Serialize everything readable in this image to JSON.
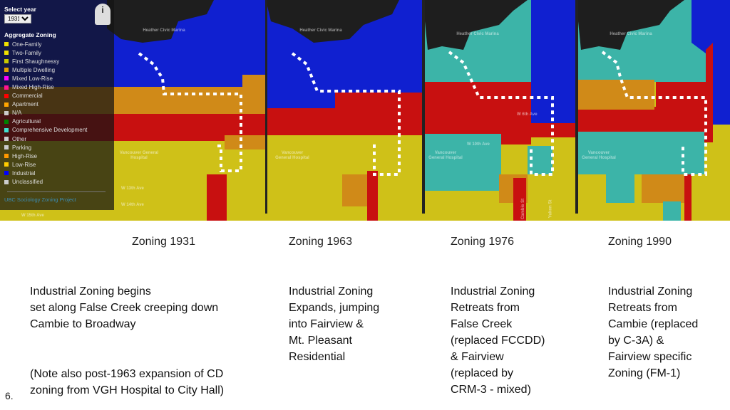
{
  "legend": {
    "select_label": "Select year",
    "year": "1931",
    "title": "Aggregate Zoning",
    "items": [
      {
        "label": "One-Family",
        "color": "#f0e000"
      },
      {
        "label": "Two-Family",
        "color": "#f0e000"
      },
      {
        "label": "First Shaughnessy",
        "color": "#c8c800"
      },
      {
        "label": "Multiple Dwelling",
        "color": "#e0a000"
      },
      {
        "label": "Mixed Low-Rise",
        "color": "#ff00ff"
      },
      {
        "label": "Mixed High-Rise",
        "color": "#ff1493"
      },
      {
        "label": "Commercial",
        "color": "#ff0000"
      },
      {
        "label": "Apartment",
        "color": "#ffa500"
      },
      {
        "label": "N/A",
        "color": "#cccccc"
      },
      {
        "label": "Agricultural",
        "color": "#008000"
      },
      {
        "label": "Comprehensive Development",
        "color": "#40e0d0"
      },
      {
        "label": "Other",
        "color": "#cccccc"
      },
      {
        "label": "Parking",
        "color": "#cccccc"
      },
      {
        "label": "High-Rise",
        "color": "#ff9900"
      },
      {
        "label": "Low-Rise",
        "color": "#ffcc00"
      },
      {
        "label": "Industrial",
        "color": "#0000ff"
      },
      {
        "label": "Unclassified",
        "color": "#cccccc"
      }
    ],
    "link": "UBC Sociology Zoning Project"
  },
  "map_labels": {
    "marina": "Heather Civic Marina",
    "hospital": "Vancouver General Hospital",
    "w10": "W 10th Ave",
    "w13": "W 13th Ave",
    "w14": "W 14th Ave",
    "w15": "W 15th Ave",
    "w6": "W 6th Ave",
    "cambie": "Cambie St",
    "yukon": "Yukon St"
  },
  "captions": [
    "Zoning 1931",
    "Zoning 1963",
    "Zoning 1976",
    "Zoning 1990"
  ],
  "descriptions": {
    "d1931": [
      "Industrial Zoning begins",
      "set along False Creek creeping down",
      "Cambie to Broadway"
    ],
    "note": [
      "(Note also post-1963 expansion of CD",
      "zoning from VGH Hospital to City Hall)"
    ],
    "d1963": [
      "Industrial Zoning",
      "Expands, jumping",
      "into Fairview &",
      "Mt. Pleasant",
      "Residential"
    ],
    "d1976": [
      "Industrial Zoning",
      "Retreats from",
      "False Creek",
      "(replaced FCCDD)",
      "& Fairview",
      "(replaced by",
      "CRM-3 - mixed)"
    ],
    "d1990": [
      "Industrial Zoning",
      "Retreats from",
      "Cambie (replaced",
      "by C-3A) &",
      "Fairview specific",
      "Zoning (FM-1)"
    ]
  },
  "slide_number": "6."
}
